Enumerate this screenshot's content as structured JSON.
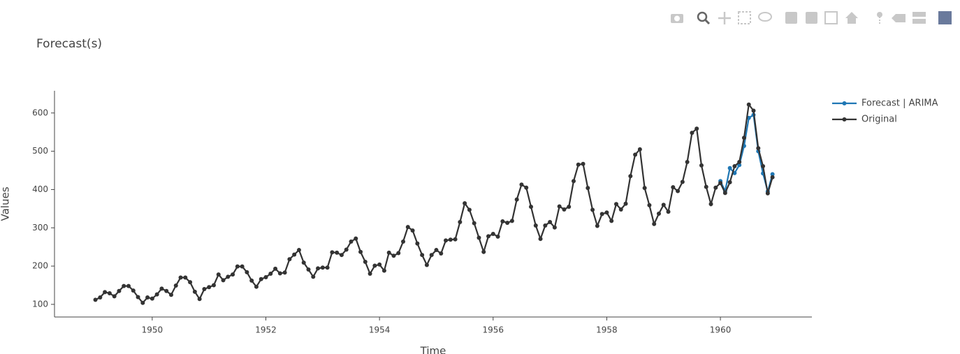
{
  "chart_data": {
    "type": "line",
    "title": "Forecast(s)",
    "x_label": "Time",
    "y_label": "Values",
    "xlim": [
      1948.28,
      1961.61
    ],
    "xticks": [
      1950,
      1952,
      1954,
      1956,
      1958,
      1960
    ],
    "ylim": [
      67,
      658
    ],
    "yticks": [
      100,
      200,
      300,
      400,
      500,
      600
    ],
    "grid": false,
    "legend": "right",
    "series": [
      {
        "name": "Forecast | ARIMA",
        "color": "#1f77b4",
        "x": [
          "1960-01",
          "1960-02",
          "1960-03",
          "1960-04",
          "1960-05",
          "1960-06",
          "1960-07",
          "1960-08",
          "1960-09",
          "1960-10",
          "1960-11",
          "1960-12"
        ],
        "values": [
          422,
          396,
          456,
          443,
          464,
          514,
          587,
          595,
          500,
          442,
          395,
          440
        ]
      },
      {
        "name": "Original",
        "color": "#333333",
        "x": [
          "1949-01",
          "1949-02",
          "1949-03",
          "1949-04",
          "1949-05",
          "1949-06",
          "1949-07",
          "1949-08",
          "1949-09",
          "1949-10",
          "1949-11",
          "1949-12",
          "1950-01",
          "1950-02",
          "1950-03",
          "1950-04",
          "1950-05",
          "1950-06",
          "1950-07",
          "1950-08",
          "1950-09",
          "1950-10",
          "1950-11",
          "1950-12",
          "1951-01",
          "1951-02",
          "1951-03",
          "1951-04",
          "1951-05",
          "1951-06",
          "1951-07",
          "1951-08",
          "1951-09",
          "1951-10",
          "1951-11",
          "1951-12",
          "1952-01",
          "1952-02",
          "1952-03",
          "1952-04",
          "1952-05",
          "1952-06",
          "1952-07",
          "1952-08",
          "1952-09",
          "1952-10",
          "1952-11",
          "1952-12",
          "1953-01",
          "1953-02",
          "1953-03",
          "1953-04",
          "1953-05",
          "1953-06",
          "1953-07",
          "1953-08",
          "1953-09",
          "1953-10",
          "1953-11",
          "1953-12",
          "1954-01",
          "1954-02",
          "1954-03",
          "1954-04",
          "1954-05",
          "1954-06",
          "1954-07",
          "1954-08",
          "1954-09",
          "1954-10",
          "1954-11",
          "1954-12",
          "1955-01",
          "1955-02",
          "1955-03",
          "1955-04",
          "1955-05",
          "1955-06",
          "1955-07",
          "1955-08",
          "1955-09",
          "1955-10",
          "1955-11",
          "1955-12",
          "1956-01",
          "1956-02",
          "1956-03",
          "1956-04",
          "1956-05",
          "1956-06",
          "1956-07",
          "1956-08",
          "1956-09",
          "1956-10",
          "1956-11",
          "1956-12",
          "1957-01",
          "1957-02",
          "1957-03",
          "1957-04",
          "1957-05",
          "1957-06",
          "1957-07",
          "1957-08",
          "1957-09",
          "1957-10",
          "1957-11",
          "1957-12",
          "1958-01",
          "1958-02",
          "1958-03",
          "1958-04",
          "1958-05",
          "1958-06",
          "1958-07",
          "1958-08",
          "1958-09",
          "1958-10",
          "1958-11",
          "1958-12",
          "1959-01",
          "1959-02",
          "1959-03",
          "1959-04",
          "1959-05",
          "1959-06",
          "1959-07",
          "1959-08",
          "1959-09",
          "1959-10",
          "1959-11",
          "1959-12",
          "1960-01",
          "1960-02",
          "1960-03",
          "1960-04",
          "1960-05",
          "1960-06",
          "1960-07",
          "1960-08",
          "1960-09",
          "1960-10",
          "1960-11",
          "1960-12"
        ],
        "values": [
          112,
          118,
          132,
          129,
          121,
          135,
          148,
          148,
          136,
          119,
          104,
          118,
          115,
          126,
          141,
          135,
          125,
          149,
          170,
          170,
          158,
          133,
          114,
          140,
          145,
          150,
          178,
          163,
          172,
          178,
          199,
          199,
          184,
          162,
          146,
          166,
          171,
          180,
          193,
          181,
          183,
          218,
          230,
          242,
          209,
          191,
          172,
          194,
          196,
          196,
          236,
          235,
          229,
          243,
          264,
          272,
          237,
          211,
          180,
          201,
          204,
          188,
          235,
          227,
          234,
          264,
          302,
          293,
          259,
          229,
          203,
          229,
          242,
          233,
          267,
          269,
          270,
          315,
          364,
          347,
          312,
          274,
          237,
          278,
          284,
          277,
          317,
          313,
          318,
          374,
          413,
          405,
          355,
          306,
          271,
          306,
          315,
          301,
          356,
          348,
          355,
          422,
          465,
          467,
          404,
          347,
          305,
          336,
          340,
          318,
          362,
          348,
          363,
          435,
          491,
          505,
          404,
          359,
          310,
          337,
          360,
          342,
          406,
          396,
          420,
          472,
          548,
          559,
          463,
          407,
          362,
          405,
          417,
          391,
          419,
          461,
          472,
          535,
          622,
          606,
          508,
          461,
          390,
          432
        ]
      }
    ]
  }
}
